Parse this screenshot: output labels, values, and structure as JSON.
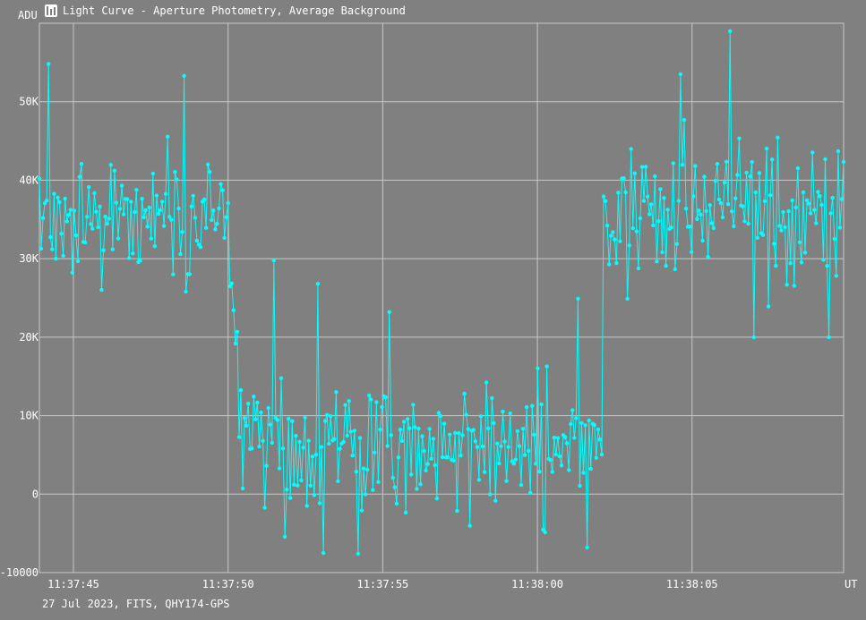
{
  "window": {
    "title": "Light Curve - Aperture Photometry, Average Background"
  },
  "footer": {
    "caption": "27 Jul 2023, FITS, QHY174-GPS"
  },
  "colors": {
    "background": "#808080",
    "grid": "#c8c8c8",
    "series": "#00ffff",
    "text": "#ffffff"
  },
  "chart_data": {
    "type": "line",
    "title": "Light Curve - Aperture Photometry, Average Background",
    "ylabel": "ADU",
    "xlabel": "UT",
    "ylim": [
      -10000,
      60000
    ],
    "xlim": [
      0,
      26
    ],
    "y_ticks": [
      {
        "v": 50000,
        "label": "50K"
      },
      {
        "v": 40000,
        "label": "40K"
      },
      {
        "v": 30000,
        "label": "30K"
      },
      {
        "v": 20000,
        "label": "20K"
      },
      {
        "v": 10000,
        "label": "10K"
      },
      {
        "v": 0,
        "label": "0"
      },
      {
        "v": -10000,
        "label": "-10000"
      }
    ],
    "x_ticks": [
      {
        "v": 1.1,
        "label": "11:37:45"
      },
      {
        "v": 6.1,
        "label": "11:37:50"
      },
      {
        "v": 11.1,
        "label": "11:37:55"
      },
      {
        "v": 16.1,
        "label": "11:38:00"
      },
      {
        "v": 21.1,
        "label": "11:38:05"
      }
    ],
    "grid": true,
    "segments": [
      {
        "x0": 0.0,
        "x1": 6.2,
        "mean": 35500,
        "amp": 7500
      },
      {
        "x0": 6.2,
        "x1": 6.6,
        "mean": 20000,
        "amp": 12000
      },
      {
        "x0": 6.6,
        "x1": 18.2,
        "mean": 6500,
        "amp": 7500
      },
      {
        "x0": 18.2,
        "x1": 26.0,
        "mean": 36000,
        "amp": 8000
      }
    ],
    "highlights": [
      {
        "x": 0.27,
        "y": 54800
      },
      {
        "x": 4.65,
        "y": 53300
      },
      {
        "x": 20.7,
        "y": 53500
      },
      {
        "x": 22.3,
        "y": 59000
      },
      {
        "x": 7.6,
        "y": 29800
      },
      {
        "x": 9.0,
        "y": 26800
      },
      {
        "x": 11.3,
        "y": 23200
      },
      {
        "x": 17.4,
        "y": 24900
      },
      {
        "x": 9.2,
        "y": -7500
      },
      {
        "x": 10.3,
        "y": -7600
      },
      {
        "x": 17.7,
        "y": -6800
      },
      {
        "x": 23.1,
        "y": 20000
      },
      {
        "x": 25.5,
        "y": 20000
      }
    ],
    "series": [
      {
        "samples": 440,
        "seed": 20230727
      }
    ]
  }
}
